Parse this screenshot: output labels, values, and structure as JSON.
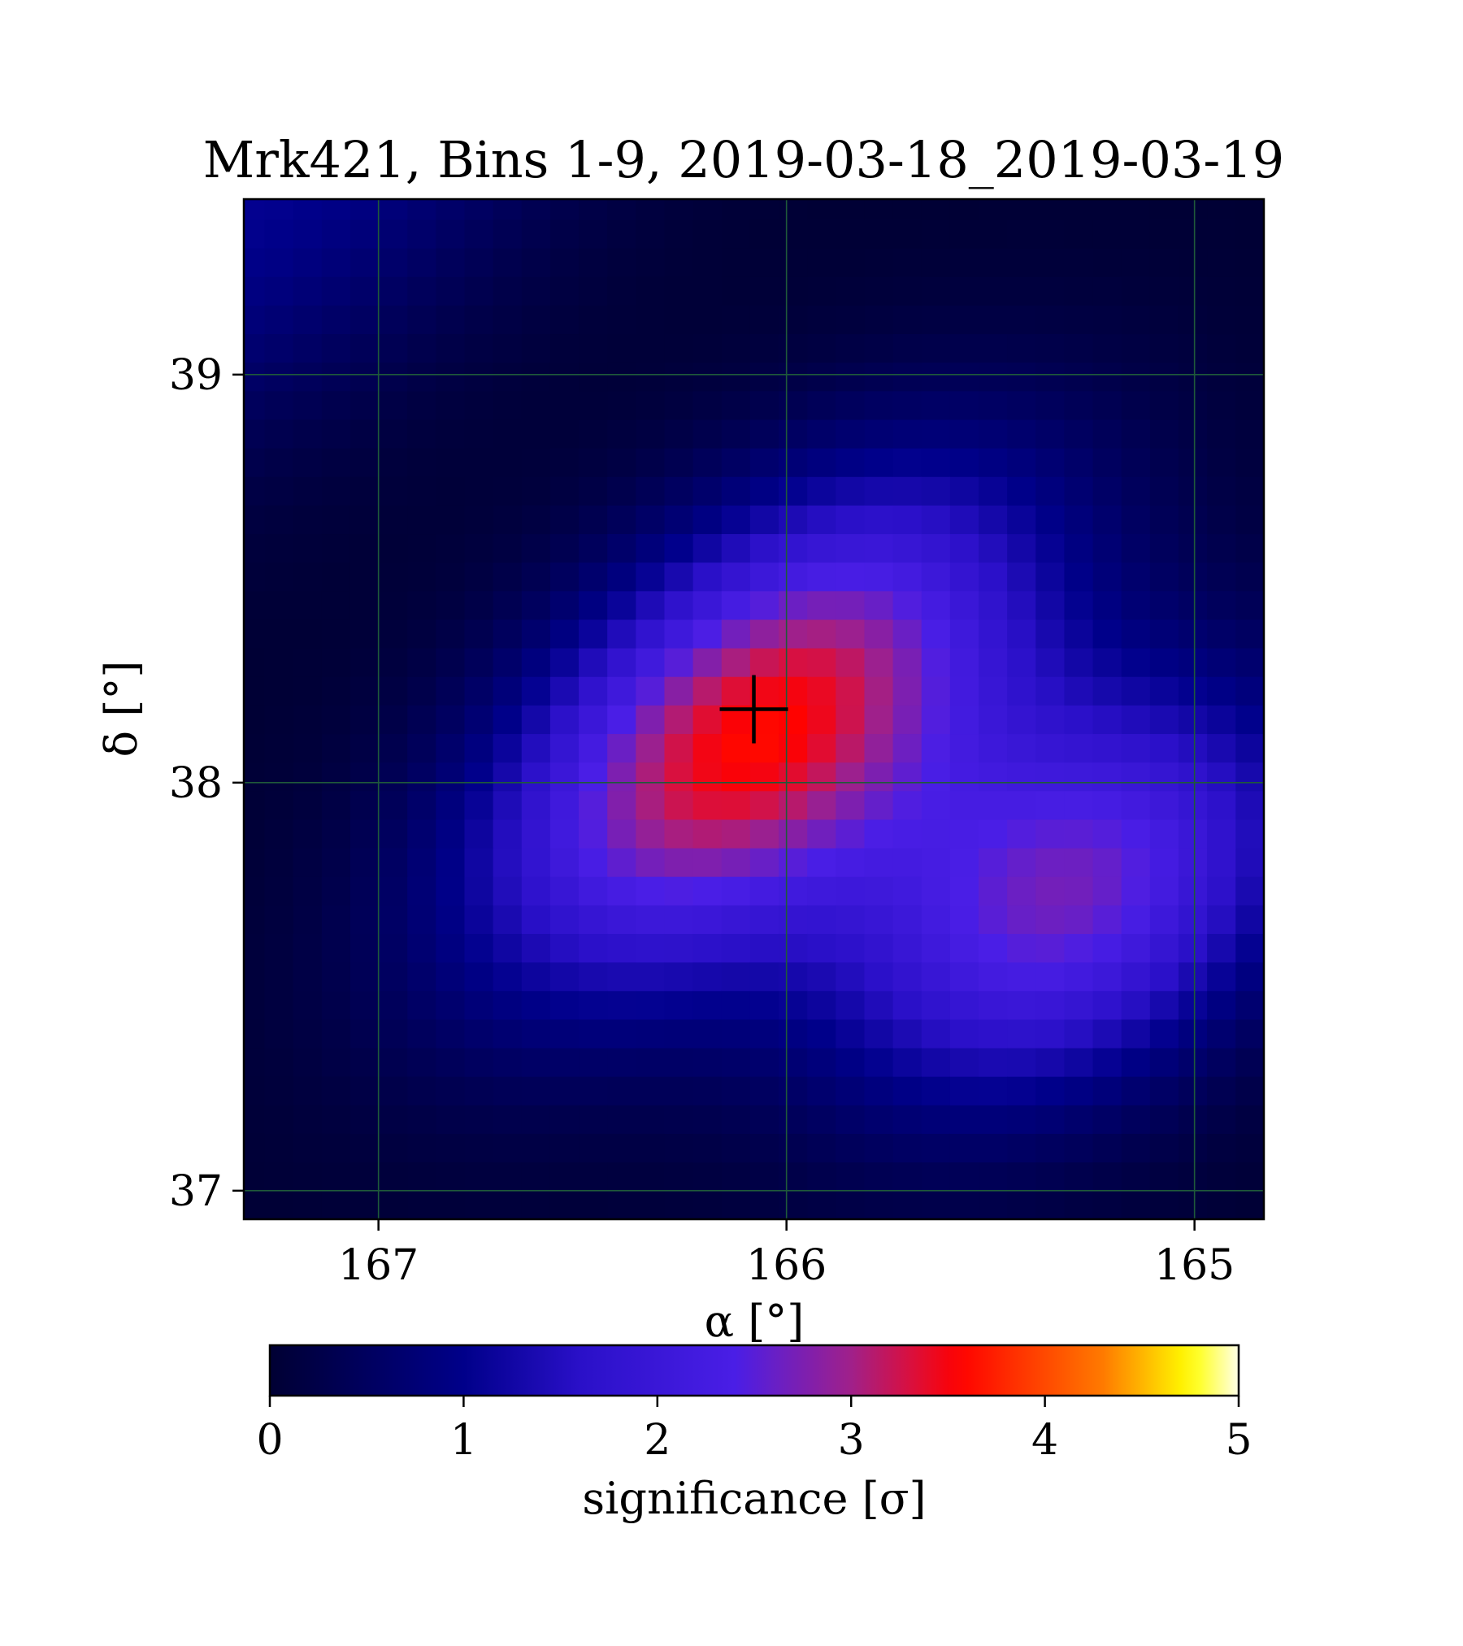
{
  "chart_data": {
    "type": "heatmap",
    "title": "Mrk421, Bins 1-9, 2019-03-18_2019-03-19",
    "xlabel": "α [°]",
    "ylabel": "δ [°]",
    "x_axis": {
      "range": [
        167.33,
        164.83
      ],
      "reversed": true,
      "ticks": [
        167,
        166,
        165
      ],
      "tick_labels": [
        "167",
        "166",
        "165"
      ]
    },
    "y_axis": {
      "range": [
        36.93,
        39.43
      ],
      "ticks": [
        37,
        38,
        39
      ],
      "tick_labels": [
        "37",
        "38",
        "39"
      ]
    },
    "grid": true,
    "grid_color": "#1f5a3a",
    "colorbar": {
      "label": "significance [σ]",
      "range": [
        0,
        5
      ],
      "ticks": [
        0,
        1,
        2,
        3,
        4,
        5
      ],
      "tick_labels": [
        "0",
        "1",
        "2",
        "3",
        "4",
        "5"
      ],
      "colormap": "gnuplot2-like",
      "stops": [
        {
          "v": 0.0,
          "color": "#000033"
        },
        {
          "v": 1.0,
          "color": "#00008a"
        },
        {
          "v": 1.6,
          "color": "#2a10c8"
        },
        {
          "v": 2.4,
          "color": "#4a1ee6"
        },
        {
          "v": 3.0,
          "color": "#a0208a"
        },
        {
          "v": 3.3,
          "color": "#d81040"
        },
        {
          "v": 3.55,
          "color": "#ff0000"
        },
        {
          "v": 4.3,
          "color": "#ff7a00"
        },
        {
          "v": 4.75,
          "color": "#ffff00"
        },
        {
          "v": 5.0,
          "color": "#ffffe6"
        }
      ]
    },
    "blobs": [
      {
        "ra": 166.08,
        "dec": 38.12,
        "amplitude": 3.55,
        "sigma_major": 0.55,
        "sigma_minor": 0.3,
        "angle_deg": -40
      },
      {
        "ra": 165.3,
        "dec": 37.72,
        "amplitude": 2.6,
        "sigma_major": 0.45,
        "sigma_minor": 0.3,
        "angle_deg": -35
      },
      {
        "ra": 167.33,
        "dec": 39.43,
        "amplitude": 1.05,
        "sigma_major": 0.7,
        "sigma_minor": 0.35,
        "angle_deg": -35
      }
    ],
    "marker": {
      "type": "plus",
      "ra": 166.08,
      "dec": 38.18,
      "color": "#000000"
    },
    "pixel_size_deg": 0.07
  }
}
